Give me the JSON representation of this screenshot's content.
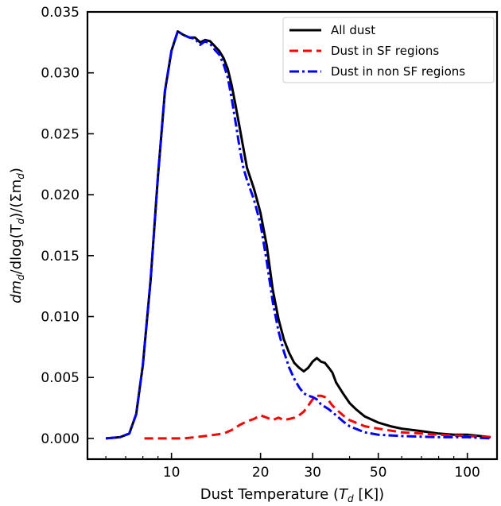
{
  "chart_data": {
    "type": "line",
    "title": "",
    "xlabel": {
      "prefix": "Dust Temperature (",
      "italic": "T",
      "sub": "d",
      "suffix": " [K])"
    },
    "ylabel": {
      "prefix": "dm",
      "sub1": "d",
      "mid": "/dlog(T",
      "sub2": "d",
      "mid2": ")/(Σm",
      "sub3": "d",
      "suffix": ")"
    },
    "xscale": "log",
    "xlim": [
      5.2,
      126
    ],
    "ylim": [
      -0.0017,
      0.035
    ],
    "xticks": [
      {
        "value": 10,
        "label": "10"
      },
      {
        "value": 20,
        "label": "20"
      },
      {
        "value": 30,
        "label": "30"
      },
      {
        "value": 50,
        "label": "50"
      },
      {
        "value": 100,
        "label": "100"
      }
    ],
    "yticks": [
      {
        "value": 0.0,
        "label": "0.000"
      },
      {
        "value": 0.005,
        "label": "0.005"
      },
      {
        "value": 0.01,
        "label": "0.010"
      },
      {
        "value": 0.015,
        "label": "0.015"
      },
      {
        "value": 0.02,
        "label": "0.020"
      },
      {
        "value": 0.025,
        "label": "0.025"
      },
      {
        "value": 0.03,
        "label": "0.030"
      },
      {
        "value": 0.035,
        "label": "0.035"
      }
    ],
    "legend_position": "top-right",
    "grid": false,
    "series": [
      {
        "name": "All dust",
        "color": "#000000",
        "style": "solid",
        "points": [
          [
            6.0,
            0.0
          ],
          [
            6.7,
            0.0001
          ],
          [
            7.2,
            0.0004
          ],
          [
            7.6,
            0.002
          ],
          [
            8.0,
            0.006
          ],
          [
            8.5,
            0.013
          ],
          [
            9.0,
            0.0215
          ],
          [
            9.5,
            0.0285
          ],
          [
            10.0,
            0.0318
          ],
          [
            10.5,
            0.0334
          ],
          [
            11.0,
            0.0331
          ],
          [
            11.5,
            0.0329
          ],
          [
            12.0,
            0.0329
          ],
          [
            12.5,
            0.0325
          ],
          [
            13.0,
            0.0327
          ],
          [
            13.5,
            0.0326
          ],
          [
            14.0,
            0.0322
          ],
          [
            14.5,
            0.0318
          ],
          [
            15.0,
            0.0312
          ],
          [
            15.5,
            0.0303
          ],
          [
            16.0,
            0.0289
          ],
          [
            16.5,
            0.0272
          ],
          [
            17.0,
            0.0255
          ],
          [
            17.5,
            0.0238
          ],
          [
            18.0,
            0.0222
          ],
          [
            19.0,
            0.0205
          ],
          [
            19.5,
            0.0195
          ],
          [
            20.0,
            0.0185
          ],
          [
            21.0,
            0.0158
          ],
          [
            22.0,
            0.0122
          ],
          [
            23.0,
            0.0098
          ],
          [
            24.0,
            0.0081
          ],
          [
            25.0,
            0.007
          ],
          [
            26.0,
            0.0062
          ],
          [
            27.0,
            0.0058
          ],
          [
            28.0,
            0.0055
          ],
          [
            29.0,
            0.0058
          ],
          [
            30.0,
            0.0063
          ],
          [
            31.0,
            0.0066
          ],
          [
            32.0,
            0.0063
          ],
          [
            33.0,
            0.0062
          ],
          [
            34.0,
            0.0058
          ],
          [
            35.0,
            0.0054
          ],
          [
            36.0,
            0.0046
          ],
          [
            38.0,
            0.0037
          ],
          [
            40.0,
            0.0029
          ],
          [
            42.0,
            0.0024
          ],
          [
            45.0,
            0.0018
          ],
          [
            50.0,
            0.0013
          ],
          [
            55.0,
            0.001
          ],
          [
            60.0,
            0.0008
          ],
          [
            70.0,
            0.0006
          ],
          [
            80.0,
            0.0004
          ],
          [
            90.0,
            0.0003
          ],
          [
            100.0,
            0.0003
          ],
          [
            110.0,
            0.0002
          ],
          [
            120.0,
            0.0001
          ]
        ]
      },
      {
        "name": "Dust in SF regions",
        "color": "#ff0000",
        "style": "dashed",
        "points": [
          [
            8.1,
            0.0
          ],
          [
            9.0,
            0.0
          ],
          [
            10.0,
            0.0
          ],
          [
            11.0,
            0.0
          ],
          [
            12.0,
            0.0001
          ],
          [
            13.0,
            0.0002
          ],
          [
            14.0,
            0.0003
          ],
          [
            15.0,
            0.0004
          ],
          [
            16.0,
            0.0007
          ],
          [
            17.0,
            0.0011
          ],
          [
            18.0,
            0.0014
          ],
          [
            19.0,
            0.0016
          ],
          [
            20.0,
            0.0019
          ],
          [
            21.0,
            0.0017
          ],
          [
            22.0,
            0.0015
          ],
          [
            23.0,
            0.0017
          ],
          [
            24.0,
            0.0015
          ],
          [
            25.0,
            0.0016
          ],
          [
            26.0,
            0.0017
          ],
          [
            27.0,
            0.0019
          ],
          [
            28.0,
            0.0022
          ],
          [
            29.0,
            0.0027
          ],
          [
            30.0,
            0.0032
          ],
          [
            31.0,
            0.0035
          ],
          [
            32.0,
            0.0035
          ],
          [
            33.0,
            0.0034
          ],
          [
            34.0,
            0.0031
          ],
          [
            35.0,
            0.0027
          ],
          [
            36.0,
            0.0024
          ],
          [
            38.0,
            0.0019
          ],
          [
            40.0,
            0.0015
          ],
          [
            45.0,
            0.001
          ],
          [
            50.0,
            0.0008
          ],
          [
            60.0,
            0.0005
          ],
          [
            70.0,
            0.0004
          ],
          [
            80.0,
            0.0003
          ],
          [
            100.0,
            0.0002
          ],
          [
            120.0,
            0.0001
          ]
        ]
      },
      {
        "name": "Dust in non SF regions",
        "color": "#0000ff",
        "style": "dashdot",
        "points": [
          [
            6.0,
            0.0
          ],
          [
            6.7,
            0.0001
          ],
          [
            7.2,
            0.0004
          ],
          [
            7.6,
            0.002
          ],
          [
            8.0,
            0.006
          ],
          [
            8.5,
            0.013
          ],
          [
            9.0,
            0.0215
          ],
          [
            9.5,
            0.0285
          ],
          [
            10.0,
            0.0318
          ],
          [
            10.5,
            0.0334
          ],
          [
            11.0,
            0.0331
          ],
          [
            11.5,
            0.0329
          ],
          [
            12.0,
            0.0328
          ],
          [
            12.5,
            0.0323
          ],
          [
            13.0,
            0.0326
          ],
          [
            13.5,
            0.0324
          ],
          [
            14.0,
            0.0319
          ],
          [
            14.5,
            0.0315
          ],
          [
            15.0,
            0.0307
          ],
          [
            15.5,
            0.0296
          ],
          [
            16.0,
            0.0278
          ],
          [
            16.5,
            0.0258
          ],
          [
            17.0,
            0.0238
          ],
          [
            17.5,
            0.0222
          ],
          [
            18.0,
            0.0212
          ],
          [
            19.0,
            0.0196
          ],
          [
            20.0,
            0.0176
          ],
          [
            21.0,
            0.0145
          ],
          [
            22.0,
            0.0112
          ],
          [
            23.0,
            0.0088
          ],
          [
            24.0,
            0.0071
          ],
          [
            25.0,
            0.0058
          ],
          [
            26.0,
            0.0049
          ],
          [
            27.0,
            0.0042
          ],
          [
            28.0,
            0.0037
          ],
          [
            29.0,
            0.0035
          ],
          [
            30.0,
            0.0034
          ],
          [
            31.0,
            0.0032
          ],
          [
            32.0,
            0.0028
          ],
          [
            34.0,
            0.0024
          ],
          [
            36.0,
            0.0019
          ],
          [
            38.0,
            0.0014
          ],
          [
            40.0,
            0.001
          ],
          [
            45.0,
            0.0005
          ],
          [
            50.0,
            0.0003
          ],
          [
            60.0,
            0.0002
          ],
          [
            80.0,
            0.0001
          ],
          [
            100.0,
            0.0001
          ],
          [
            120.0,
            0.0
          ]
        ]
      }
    ]
  }
}
